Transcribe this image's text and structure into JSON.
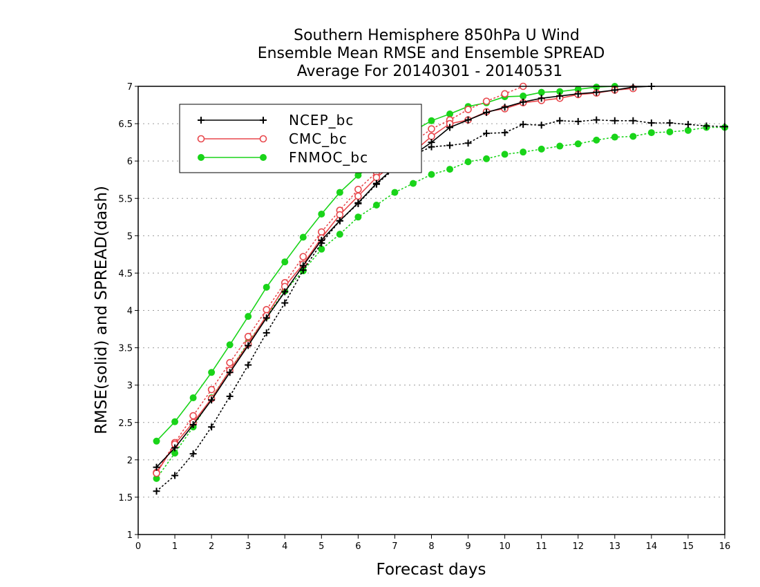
{
  "chart_data": {
    "type": "line",
    "title": [
      "Southern Hemisphere 850hPa U Wind",
      "Ensemble Mean RMSE and Ensemble SPREAD",
      "Average For 20140301 - 20140531"
    ],
    "xlabel": "Forecast days",
    "ylabel": "RMSE(solid) and SPREAD(dash)",
    "xlim": [
      0,
      16
    ],
    "ylim": [
      1,
      7
    ],
    "xticks": [
      "0",
      "1",
      "2",
      "3",
      "4",
      "5",
      "6",
      "7",
      "8",
      "9",
      "10",
      "11",
      "12",
      "13",
      "14",
      "15",
      "16"
    ],
    "yticks": [
      "1",
      "1.5",
      "2",
      "2.5",
      "3",
      "3.5",
      "4",
      "4.5",
      "5",
      "5.5",
      "6",
      "6.5",
      "7"
    ],
    "grid": "horizontal dotted",
    "legend_position": "top-left",
    "x": [
      0.5,
      1,
      1.5,
      2,
      2.5,
      3,
      3.5,
      4,
      4.5,
      5,
      5.5,
      6,
      6.5,
      7,
      7.5,
      8,
      8.5,
      9,
      9.5,
      10,
      10.5,
      11,
      11.5,
      12,
      12.5,
      13,
      13.5,
      14,
      14.5,
      15,
      15.5,
      16
    ],
    "series": [
      {
        "name": "NCEP_bc",
        "color": "#000000",
        "marker": "plus",
        "rmse": [
          1.9,
          2.16,
          2.47,
          2.8,
          3.17,
          3.53,
          3.9,
          4.25,
          4.6,
          4.94,
          5.2,
          5.44,
          5.7,
          5.92,
          6.08,
          6.25,
          6.45,
          6.55,
          6.65,
          6.72,
          6.79,
          6.84,
          6.87,
          6.9,
          6.92,
          6.95,
          6.99,
          7.0,
          null,
          null,
          null,
          null
        ],
        "spread": [
          1.58,
          1.79,
          2.08,
          2.44,
          2.85,
          3.27,
          3.7,
          4.1,
          4.54,
          4.9,
          5.2,
          5.43,
          5.69,
          5.9,
          6.08,
          6.19,
          6.21,
          6.24,
          6.37,
          6.38,
          6.49,
          6.48,
          6.54,
          6.53,
          6.55,
          6.54,
          6.54,
          6.51,
          6.51,
          6.49,
          6.47,
          6.46
        ]
      },
      {
        "name": "CMC_bc",
        "color": "#e8474c",
        "marker": "open-circle",
        "rmse": [
          1.82,
          2.21,
          2.5,
          2.82,
          3.2,
          3.55,
          3.93,
          4.32,
          4.62,
          4.97,
          5.28,
          5.53,
          5.78,
          5.97,
          6.12,
          6.33,
          6.5,
          6.55,
          6.66,
          6.7,
          6.78,
          6.81,
          6.84,
          6.89,
          6.91,
          6.95,
          6.97,
          null,
          null,
          null,
          null,
          null
        ],
        "spread": [
          1.83,
          2.23,
          2.59,
          2.94,
          3.3,
          3.65,
          4.01,
          4.37,
          4.72,
          5.05,
          5.34,
          5.62,
          5.85,
          6.03,
          6.25,
          6.43,
          6.55,
          6.69,
          6.8,
          6.9,
          7.0,
          null,
          null,
          null,
          null,
          null,
          null,
          null,
          null,
          null,
          null,
          null
        ]
      },
      {
        "name": "FNMOC_bc",
        "color": "#19d419",
        "marker": "filled-circle",
        "rmse": [
          2.25,
          2.51,
          2.83,
          3.17,
          3.54,
          3.92,
          4.31,
          4.65,
          4.98,
          5.29,
          5.58,
          5.81,
          5.98,
          6.2,
          6.4,
          6.54,
          6.63,
          6.73,
          6.78,
          6.86,
          6.87,
          6.92,
          6.93,
          6.96,
          6.99,
          7.0,
          null,
          null,
          null,
          null,
          null,
          null
        ],
        "spread": [
          1.75,
          2.09,
          2.44,
          2.83,
          3.2,
          3.57,
          3.92,
          4.26,
          4.53,
          4.82,
          5.02,
          5.25,
          5.41,
          5.58,
          5.7,
          5.82,
          5.89,
          5.99,
          6.03,
          6.09,
          6.12,
          6.16,
          6.2,
          6.23,
          6.28,
          6.32,
          6.33,
          6.38,
          6.39,
          6.41,
          6.45,
          6.45
        ]
      }
    ]
  }
}
